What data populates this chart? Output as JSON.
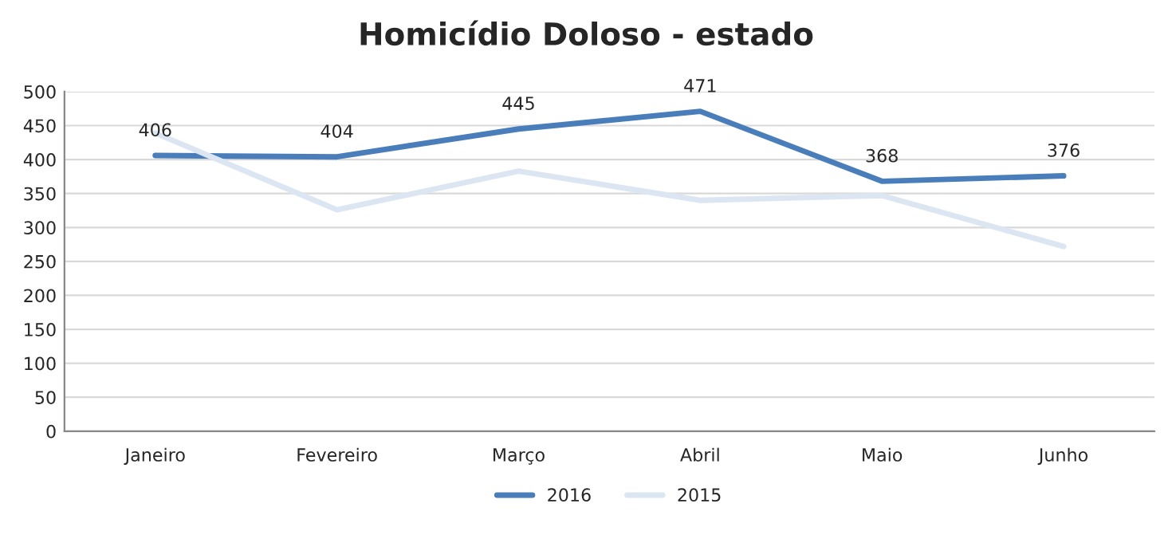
{
  "chart_data": {
    "type": "line",
    "title": "Homicídio Doloso - estado",
    "categories": [
      "Janeiro",
      "Fevereiro",
      "Março",
      "Abril",
      "Maio",
      "Junho"
    ],
    "series": [
      {
        "name": "2016",
        "color": "#4a7ebb",
        "values": [
          406,
          404,
          445,
          471,
          368,
          376
        ],
        "value_labels": [
          "406",
          "404",
          "445",
          "471",
          "368",
          "376"
        ]
      },
      {
        "name": "2015",
        "color": "#dce6f2",
        "values": [
          439,
          326,
          383,
          340,
          347,
          272
        ]
      }
    ],
    "ylim": [
      0,
      500
    ],
    "yticks": [
      0,
      50,
      100,
      150,
      200,
      250,
      300,
      350,
      400,
      450,
      500
    ],
    "grid": "y",
    "legend": "bottom",
    "marker": "none",
    "line_style": "solid"
  }
}
